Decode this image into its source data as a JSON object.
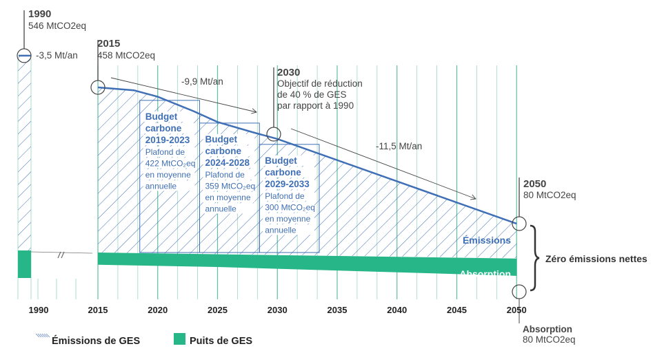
{
  "chart_data": {
    "type": "area",
    "colors": {
      "emissions": "#3f6fb5",
      "absorption": "#26b688",
      "grid": "#4fb89a",
      "annotation": "#444444"
    },
    "x_ticks": [
      "1990",
      "2015",
      "2020",
      "2025",
      "2030",
      "2035",
      "2040",
      "2045",
      "2050"
    ],
    "emissions": {
      "name": "Émissions",
      "points": [
        {
          "year": 2015,
          "value": 458
        },
        {
          "year": 2018,
          "value": 450
        },
        {
          "year": 2020,
          "value": 432
        },
        {
          "year": 2023,
          "value": 392
        },
        {
          "year": 2025,
          "value": 362
        },
        {
          "year": 2028,
          "value": 333
        },
        {
          "year": 2030,
          "value": 315
        },
        {
          "year": 2050,
          "value": 80
        }
      ],
      "value_1990": 546
    },
    "absorption": {
      "name": "Absorption",
      "points": [
        {
          "year": 2015,
          "value": 65
        },
        {
          "year": 2025,
          "value": 68
        },
        {
          "year": 2050,
          "value": 80
        }
      ]
    },
    "budgets": [
      {
        "start": 2019,
        "end": 2023,
        "cap": 422,
        "title": [
          "Budget",
          "carbone",
          "2019-2023"
        ],
        "text": [
          "Plafond de",
          "422 MtCO₂eq",
          "en moyenne",
          "annuelle"
        ]
      },
      {
        "start": 2024,
        "end": 2028,
        "cap": 359,
        "title": [
          "Budget",
          "carbone",
          "2024-2028"
        ],
        "text": [
          "Plafond de",
          "359 MtCO₂eq",
          "en moyenne",
          "annuelle"
        ]
      },
      {
        "start": 2029,
        "end": 2033,
        "cap": 300,
        "title": [
          "Budget",
          "carbone",
          "2029-2033"
        ],
        "text": [
          "Plafond de",
          "300 MtCO₂eq",
          "en moyenne",
          "annuelle"
        ]
      }
    ],
    "annotations": {
      "y1990": {
        "year": "1990",
        "value": "546 MtCO2eq"
      },
      "rate_1990": "-3,5 Mt/an",
      "y2015": {
        "year": "2015",
        "value": "458 MtCO2eq"
      },
      "rate_2015": "-9,9 Mt/an",
      "y2030": {
        "year": "2030",
        "lines": [
          "Objectif de réduction",
          "de 40 % de GES",
          "par rapport à 1990"
        ]
      },
      "rate_2030": "-11,5 Mt/an",
      "y2050": {
        "year": "2050",
        "value": "80 MtCO2eq"
      },
      "emissions_label": "Émissions",
      "absorption_label": "Absorption",
      "net_zero": "Zéro émissions nettes",
      "absorption_2050": {
        "title": "Absorption",
        "value": "80 MtCO2eq"
      }
    },
    "legend": {
      "emissions": "Émissions de GES",
      "sinks": "Puits de GES",
      "placement": "bottom-left"
    }
  }
}
